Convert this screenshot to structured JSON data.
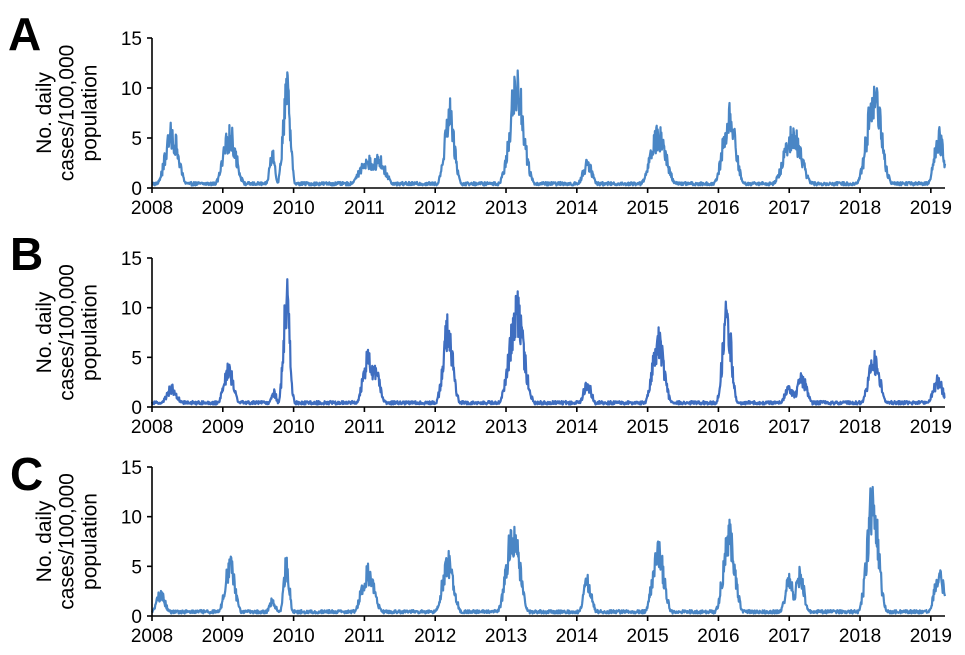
{
  "chart_data": [
    {
      "type": "line",
      "panel_label": "A",
      "ylabel": "No. daily cases/100,000 population",
      "ylabel_lines": [
        "No. daily",
        "cases/100,000",
        "population"
      ],
      "ylim": [
        0,
        15
      ],
      "yticks": [
        "0",
        "5",
        "10",
        "15"
      ],
      "xlim": [
        2008,
        2019.2
      ],
      "xticks": [
        "2008",
        "2009",
        "2010",
        "2011",
        "2012",
        "2013",
        "2014",
        "2015",
        "2016",
        "2017",
        "2018",
        "2019"
      ],
      "grid": false,
      "color": "#4a86c5",
      "series": [
        {
          "peaks": [
            {
              "x": 2008.28,
              "y": 6.7,
              "width": 0.09
            },
            {
              "x": 2009.1,
              "y": 6.5,
              "width": 0.09
            },
            {
              "x": 2009.7,
              "y": 4.1,
              "width": 0.04
            },
            {
              "x": 2009.9,
              "y": 12.3,
              "width": 0.05
            },
            {
              "x": 2011.05,
              "y": 3.3,
              "width": 0.12
            },
            {
              "x": 2011.2,
              "y": 3.4,
              "width": 0.1
            },
            {
              "x": 2012.2,
              "y": 9.3,
              "width": 0.07
            },
            {
              "x": 2013.15,
              "y": 12.1,
              "width": 0.1
            },
            {
              "x": 2014.15,
              "y": 2.9,
              "width": 0.07
            },
            {
              "x": 2015.15,
              "y": 6.4,
              "width": 0.11
            },
            {
              "x": 2016.15,
              "y": 8.7,
              "width": 0.09
            },
            {
              "x": 2017.05,
              "y": 6.6,
              "width": 0.12
            },
            {
              "x": 2018.2,
              "y": 11.5,
              "width": 0.1
            },
            {
              "x": 2019.12,
              "y": 6.2,
              "width": 0.07
            }
          ]
        }
      ]
    },
    {
      "type": "line",
      "panel_label": "B",
      "ylabel": "No. daily cases/100,000 population",
      "ylabel_lines": [
        "No. daily",
        "cases/100,000",
        "population"
      ],
      "ylim": [
        0,
        15
      ],
      "yticks": [
        "0",
        "5",
        "10",
        "15"
      ],
      "xlim": [
        2008,
        2019.2
      ],
      "xticks": [
        "2008",
        "2009",
        "2010",
        "2011",
        "2012",
        "2013",
        "2014",
        "2015",
        "2016",
        "2017",
        "2018",
        "2019"
      ],
      "grid": false,
      "color": "#3f6ec0",
      "series": [
        {
          "peaks": [
            {
              "x": 2008.28,
              "y": 2.3,
              "width": 0.08
            },
            {
              "x": 2009.08,
              "y": 4.5,
              "width": 0.07
            },
            {
              "x": 2009.72,
              "y": 1.8,
              "width": 0.04
            },
            {
              "x": 2009.9,
              "y": 13.6,
              "width": 0.045
            },
            {
              "x": 2011.05,
              "y": 6.0,
              "width": 0.07
            },
            {
              "x": 2011.15,
              "y": 4.8,
              "width": 0.07
            },
            {
              "x": 2012.18,
              "y": 9.5,
              "width": 0.07
            },
            {
              "x": 2013.15,
              "y": 11.8,
              "width": 0.1
            },
            {
              "x": 2014.15,
              "y": 2.8,
              "width": 0.06
            },
            {
              "x": 2015.15,
              "y": 8.1,
              "width": 0.08
            },
            {
              "x": 2016.12,
              "y": 11.5,
              "width": 0.06
            },
            {
              "x": 2017.0,
              "y": 2.3,
              "width": 0.07
            },
            {
              "x": 2017.18,
              "y": 3.5,
              "width": 0.07
            },
            {
              "x": 2018.2,
              "y": 5.8,
              "width": 0.08
            },
            {
              "x": 2019.1,
              "y": 3.3,
              "width": 0.07
            }
          ]
        }
      ]
    },
    {
      "type": "line",
      "panel_label": "C",
      "ylabel": "No. daily cases/100,000 population",
      "ylabel_lines": [
        "No. daily",
        "cases/100,000",
        "population"
      ],
      "ylim": [
        0,
        15
      ],
      "yticks": [
        "0",
        "5",
        "10",
        "15"
      ],
      "xlim": [
        2008,
        2019.2
      ],
      "xticks": [
        "2008",
        "2009",
        "2010",
        "2011",
        "2012",
        "2013",
        "2014",
        "2015",
        "2016",
        "2017",
        "2018",
        "2019"
      ],
      "grid": false,
      "color": "#4a86c5",
      "series": [
        {
          "peaks": [
            {
              "x": 2008.12,
              "y": 2.6,
              "width": 0.07
            },
            {
              "x": 2009.1,
              "y": 6.2,
              "width": 0.07
            },
            {
              "x": 2009.7,
              "y": 1.9,
              "width": 0.05
            },
            {
              "x": 2009.9,
              "y": 6.3,
              "width": 0.04
            },
            {
              "x": 2011.05,
              "y": 5.4,
              "width": 0.09
            },
            {
              "x": 2012.18,
              "y": 6.7,
              "width": 0.08
            },
            {
              "x": 2013.1,
              "y": 10.6,
              "width": 0.09
            },
            {
              "x": 2014.15,
              "y": 4.2,
              "width": 0.06
            },
            {
              "x": 2015.15,
              "y": 8.0,
              "width": 0.08
            },
            {
              "x": 2016.15,
              "y": 10.3,
              "width": 0.08
            },
            {
              "x": 2017.0,
              "y": 4.3,
              "width": 0.06
            },
            {
              "x": 2017.15,
              "y": 5.1,
              "width": 0.06
            },
            {
              "x": 2018.18,
              "y": 14.1,
              "width": 0.08
            },
            {
              "x": 2019.12,
              "y": 5.1,
              "width": 0.07
            }
          ]
        }
      ]
    }
  ]
}
